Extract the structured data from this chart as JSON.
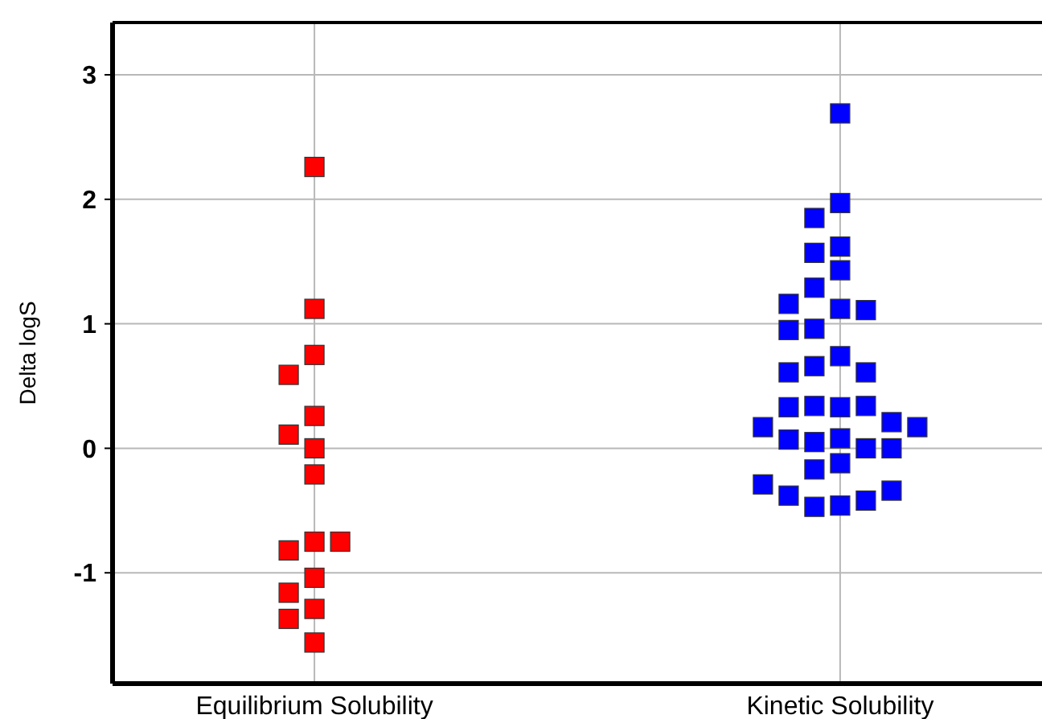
{
  "chart_data": {
    "type": "scatter",
    "ylabel": "Delta logS",
    "categories": [
      "Equilibrium Solubility",
      "Kinetic Solubility"
    ],
    "ylim": [
      -1.89,
      3.42
    ],
    "yticks": [
      -1,
      0,
      1,
      2,
      3
    ],
    "grid": true,
    "marker": "square",
    "series": [
      {
        "color": "#ff0000",
        "x": [
          "Equilibrium Solubility",
          "Equilibrium Solubility",
          "Equilibrium Solubility",
          "Equilibrium Solubility",
          "Equilibrium Solubility",
          "Equilibrium Solubility",
          "Equilibrium Solubility",
          "Equilibrium Solubility",
          "Equilibrium Solubility",
          "Equilibrium Solubility",
          "Equilibrium Solubility",
          "Equilibrium Solubility",
          "Equilibrium Solubility",
          "Equilibrium Solubility",
          "Equilibrium Solubility",
          "Equilibrium Solubility"
        ],
        "values": [
          2.26,
          1.12,
          0.75,
          0.59,
          0.26,
          0.11,
          0.0,
          -0.21,
          -0.75,
          -0.82,
          -0.75,
          -1.04,
          -1.16,
          -1.29,
          -1.37,
          -1.56
        ]
      },
      {
        "color": "#0000ff",
        "x": [
          "Kinetic Solubility",
          "Kinetic Solubility",
          "Kinetic Solubility",
          "Kinetic Solubility",
          "Kinetic Solubility",
          "Kinetic Solubility",
          "Kinetic Solubility",
          "Kinetic Solubility",
          "Kinetic Solubility",
          "Kinetic Solubility",
          "Kinetic Solubility",
          "Kinetic Solubility",
          "Kinetic Solubility",
          "Kinetic Solubility",
          "Kinetic Solubility",
          "Kinetic Solubility",
          "Kinetic Solubility",
          "Kinetic Solubility",
          "Kinetic Solubility",
          "Kinetic Solubility",
          "Kinetic Solubility",
          "Kinetic Solubility",
          "Kinetic Solubility",
          "Kinetic Solubility",
          "Kinetic Solubility",
          "Kinetic Solubility",
          "Kinetic Solubility",
          "Kinetic Solubility",
          "Kinetic Solubility",
          "Kinetic Solubility",
          "Kinetic Solubility",
          "Kinetic Solubility",
          "Kinetic Solubility",
          "Kinetic Solubility",
          "Kinetic Solubility",
          "Kinetic Solubility"
        ],
        "values": [
          2.69,
          1.97,
          1.85,
          1.62,
          1.57,
          1.43,
          1.29,
          1.12,
          1.11,
          1.16,
          0.96,
          0.95,
          0.74,
          0.66,
          0.61,
          0.61,
          0.33,
          0.34,
          0.34,
          0.33,
          0.21,
          0.17,
          0.17,
          0.08,
          0.05,
          0.0,
          0.07,
          0.0,
          -0.12,
          -0.17,
          -0.46,
          -0.47,
          -0.42,
          -0.38,
          -0.34,
          -0.29
        ]
      }
    ]
  }
}
